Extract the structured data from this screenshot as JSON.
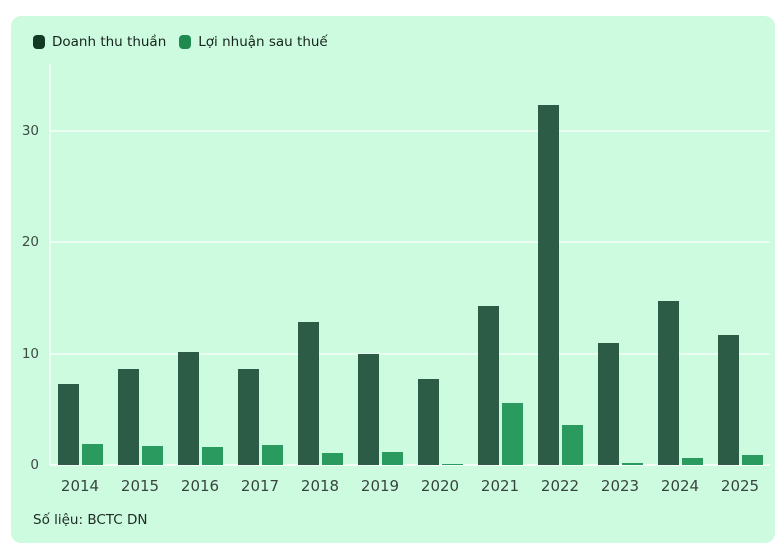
{
  "colors": {
    "panel_bg": "#cdfbe0",
    "grid": "#e4fdee",
    "revenue_bar": "#2c5c45",
    "profit_bar": "#2a9a5e",
    "revenue_swatch": "#123a24",
    "profit_swatch": "#1f8a50",
    "text_dark": "#15241c",
    "text_axis": "#3d4b44"
  },
  "source": {
    "label": "Số liệu: BCTC DN"
  },
  "chart_data": {
    "type": "bar",
    "title": "",
    "xlabel": "",
    "ylabel": "",
    "categories": [
      "2014",
      "2015",
      "2016",
      "2017",
      "2018",
      "2019",
      "2020",
      "2021",
      "2022",
      "2023",
      "2024",
      "2025"
    ],
    "series": [
      {
        "name": "Doanh thu thuần",
        "color": "#2c5c45",
        "swatch_color": "#123a24",
        "values": [
          7.3,
          8.6,
          10.1,
          8.6,
          12.8,
          10.0,
          7.7,
          14.3,
          32.3,
          10.9,
          14.7,
          11.7
        ]
      },
      {
        "name": "Lợi nhuận sau thuế",
        "color": "#2a9a5e",
        "swatch_color": "#1f8a50",
        "values": [
          1.9,
          1.7,
          1.6,
          1.8,
          1.1,
          1.2,
          0.1,
          5.6,
          3.6,
          0.2,
          0.6,
          0.9
        ]
      }
    ],
    "yticks": [
      0,
      10,
      20,
      30
    ],
    "ylim": [
      0,
      36
    ],
    "grid": "horizontal",
    "legend_position": "top-left"
  }
}
